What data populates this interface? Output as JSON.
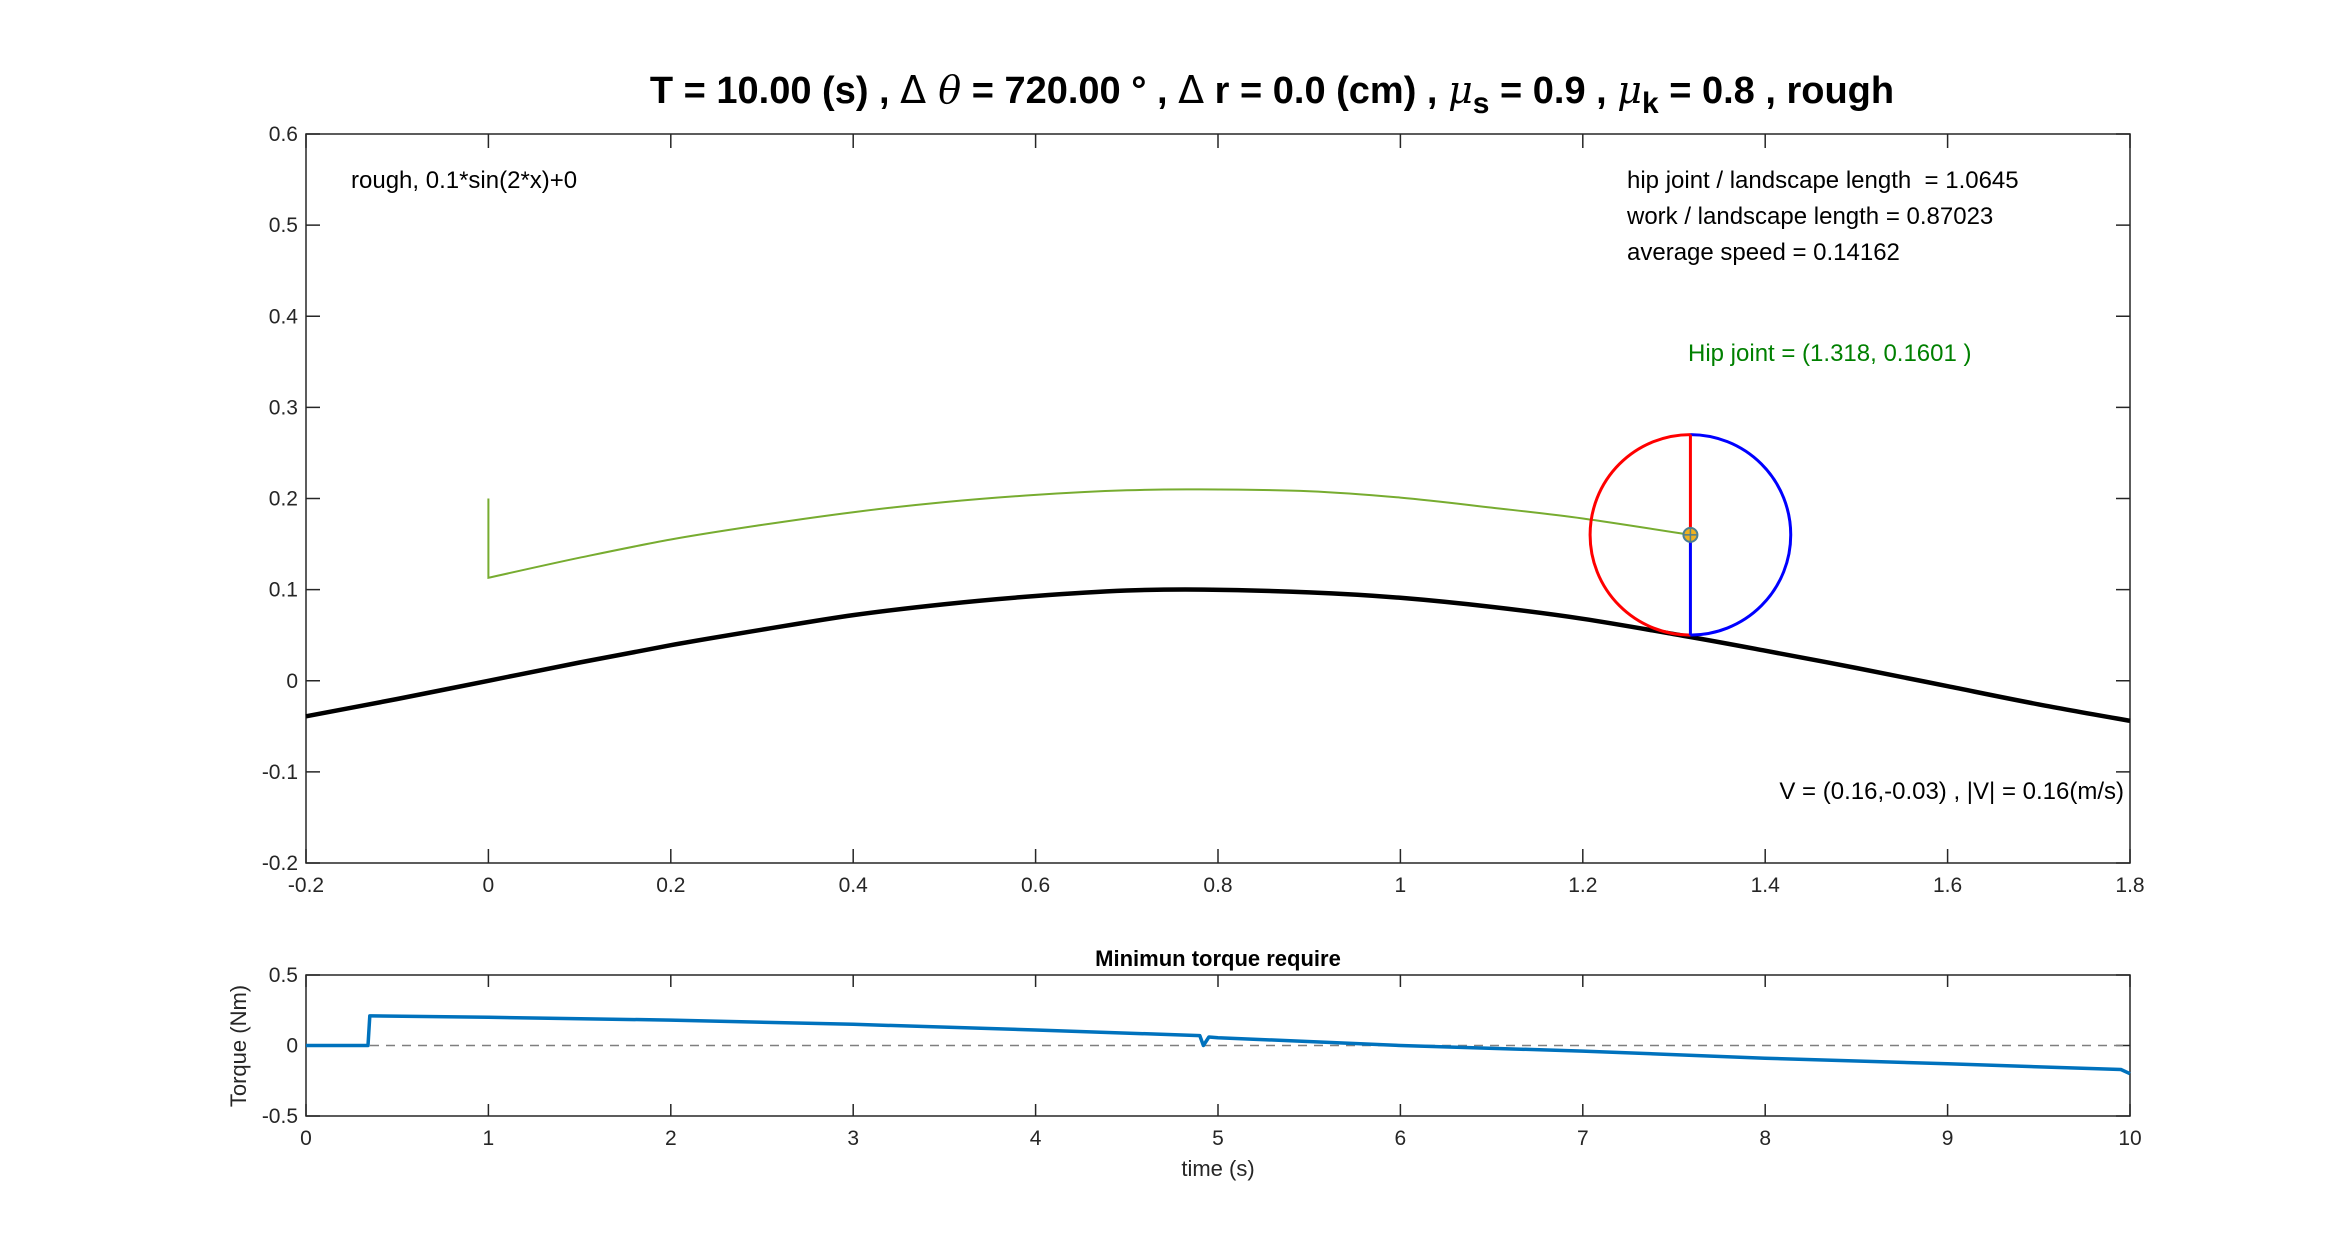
{
  "figure": {
    "title_parts": {
      "a": "T = 10.00 (s) , ",
      "delta1": "Δ",
      "theta": " θ",
      "b": " = 720.00 ° , ",
      "delta2": "Δ",
      "c": " r = 0.0 (cm) , ",
      "mu1": "μ",
      "sub_s": "s",
      "d": " = 0.9 , ",
      "mu2": "μ",
      "sub_k": "k",
      "e": " = 0.8 , rough"
    }
  },
  "chart_data": [
    {
      "type": "line",
      "xlim": [
        -0.2,
        1.8
      ],
      "ylim": [
        -0.2,
        0.6
      ],
      "xticks": [
        "-0.2",
        "0",
        "0.2",
        "0.4",
        "0.6",
        "0.8",
        "1",
        "1.2",
        "1.4",
        "1.6",
        "1.8"
      ],
      "yticks": [
        "-0.2",
        "-0.1",
        "0",
        "0.1",
        "0.2",
        "0.3",
        "0.4",
        "0.5",
        "0.6"
      ],
      "grid": false,
      "annotations": {
        "terrain": "rough, 0.1*sin(2*x)+0",
        "hip_ratio": "hip joint / landscape length  = 1.0645",
        "work_ratio": "work / landscape length = 0.87023",
        "avg_speed": "average speed = 0.14162",
        "hip_joint": "Hip joint = (1.318, 0.1601 )",
        "velocity": "V = (0.16,-0.03) , |V| = 0.16(m/s)"
      },
      "colors": {
        "terrain": "#000000",
        "trajectory": "#77ac30",
        "hip_text": "#008000",
        "wheel_left": "#ff0000",
        "wheel_right": "#0000ff",
        "hip_marker": "#edb120"
      },
      "terrain_x": [
        -0.2,
        -0.1,
        0,
        0.1,
        0.2,
        0.3,
        0.4,
        0.5,
        0.6,
        0.7,
        0.785,
        0.9,
        1.0,
        1.1,
        1.2,
        1.318,
        1.4,
        1.5,
        1.6,
        1.7,
        1.8
      ],
      "terrain_y": [
        -0.039,
        -0.02,
        0.0,
        0.02,
        0.039,
        0.056,
        0.072,
        0.084,
        0.093,
        0.099,
        0.1,
        0.097,
        0.091,
        0.081,
        0.068,
        0.048,
        0.033,
        0.014,
        -0.006,
        -0.026,
        -0.044
      ],
      "trajectory_x": [
        0,
        0,
        0,
        0.1,
        0.2,
        0.3,
        0.4,
        0.5,
        0.6,
        0.7,
        0.78,
        0.9,
        1.0,
        1.1,
        1.2,
        1.318
      ],
      "trajectory_y": [
        0.2,
        0.15,
        0.113,
        0.135,
        0.155,
        0.171,
        0.185,
        0.196,
        0.204,
        0.209,
        0.21,
        0.208,
        0.201,
        0.19,
        0.178,
        0.1601
      ],
      "wheel": {
        "center_x": 1.318,
        "center_y": 0.1601,
        "radius": 0.11
      }
    },
    {
      "type": "line",
      "title": "Minimun torque require",
      "xlabel": "time (s)",
      "ylabel": "Torque (Nm)",
      "xlim": [
        0,
        10
      ],
      "ylim": [
        -0.5,
        0.5
      ],
      "xticks": [
        "0",
        "1",
        "2",
        "3",
        "4",
        "5",
        "6",
        "7",
        "8",
        "9",
        "10"
      ],
      "yticks": [
        "-0.5",
        "0",
        "0.5"
      ],
      "grid": false,
      "zero_line": true,
      "colors": {
        "series": "#0072bd",
        "zero_line": "#7f7f7f"
      },
      "x": [
        0,
        0.34,
        0.35,
        0.36,
        1,
        2,
        3,
        4,
        4.9,
        4.92,
        4.95,
        5.0,
        6,
        7,
        8,
        9,
        9.95,
        10
      ],
      "y": [
        0.0,
        0.0,
        0.21,
        0.21,
        0.2,
        0.18,
        0.15,
        0.11,
        0.07,
        0.0,
        0.06,
        0.055,
        0.0,
        -0.04,
        -0.09,
        -0.13,
        -0.17,
        -0.2
      ]
    }
  ]
}
